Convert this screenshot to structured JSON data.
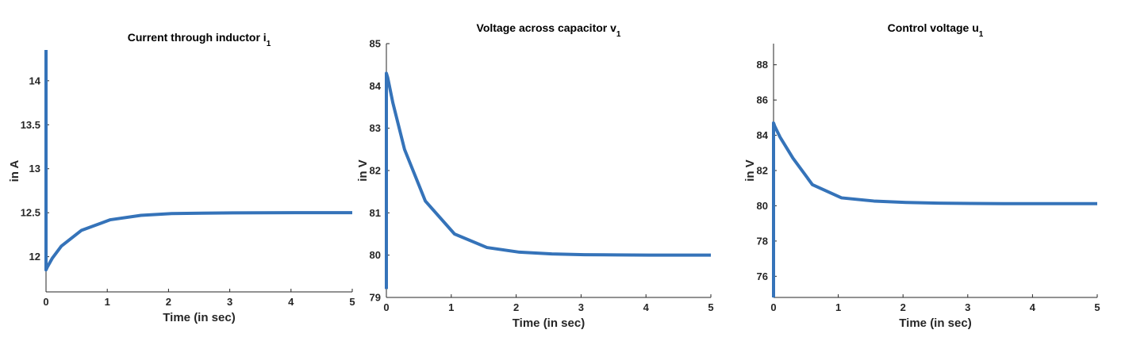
{
  "colors": {
    "line": "#3573B9",
    "axis": "#262626"
  },
  "chart_data": [
    {
      "type": "line",
      "title": {
        "main": "Current through inductor i",
        "sub": "1"
      },
      "xlabel": "Time (in sec)",
      "ylabel": "in A",
      "xlim": [
        0,
        5
      ],
      "ylim": [
        11.6,
        14.35
      ],
      "xticks": [
        0,
        1,
        2,
        3,
        4,
        5
      ],
      "yticks": [
        12,
        12.5,
        13,
        13.5,
        14
      ],
      "ytick_labels": [
        "12",
        "12.5",
        "13",
        "13.5",
        "14"
      ],
      "grid": false,
      "series": [
        {
          "x": [
            0,
            0,
            0.02,
            0.1,
            0.25,
            0.58,
            1.05,
            1.55,
            2.05,
            2.55,
            3.05,
            3.55,
            4.05,
            4.55,
            5.0
          ],
          "y": [
            14.35,
            11.85,
            11.88,
            11.98,
            12.12,
            12.3,
            12.42,
            12.47,
            12.49,
            12.495,
            12.498,
            12.499,
            12.5,
            12.5,
            12.5
          ]
        }
      ]
    },
    {
      "type": "line",
      "title": {
        "main": "Voltage across capacitor v",
        "sub": "1"
      },
      "xlabel": "Time (in sec)",
      "ylabel": "in V",
      "xlim": [
        0,
        5
      ],
      "ylim": [
        79,
        85
      ],
      "xticks": [
        0,
        1,
        2,
        3,
        4,
        5
      ],
      "yticks": [
        79,
        80,
        81,
        82,
        83,
        84,
        85
      ],
      "ytick_labels": [
        "79",
        "80",
        "81",
        "82",
        "83",
        "84",
        "85"
      ],
      "grid": false,
      "series": [
        {
          "x": [
            0,
            0,
            0.02,
            0.1,
            0.28,
            0.6,
            1.05,
            1.55,
            2.05,
            2.55,
            3.05,
            3.55,
            4.05,
            4.55,
            5.0
          ],
          "y": [
            79.2,
            84.3,
            84.2,
            83.6,
            82.5,
            81.28,
            80.5,
            80.18,
            80.07,
            80.03,
            80.01,
            80.005,
            80.0,
            80.0,
            80.0
          ]
        }
      ]
    },
    {
      "type": "line",
      "title": {
        "main": "Control voltage u",
        "sub": "1"
      },
      "xlabel": "Time (in sec)",
      "ylabel": "in V",
      "xlim": [
        0,
        5
      ],
      "ylim": [
        74.8,
        89.2
      ],
      "xticks": [
        0,
        1,
        2,
        3,
        4,
        5
      ],
      "yticks": [
        76,
        78,
        80,
        82,
        84,
        86,
        88
      ],
      "ytick_labels": [
        "76",
        "78",
        "80",
        "82",
        "84",
        "86",
        "88"
      ],
      "grid": false,
      "series": [
        {
          "x": [
            0,
            0,
            0.02,
            0.1,
            0.3,
            0.6,
            1.05,
            1.55,
            2.05,
            2.55,
            3.05,
            3.55,
            4.05,
            4.55,
            5.0
          ],
          "y": [
            74.8,
            84.7,
            84.5,
            83.9,
            82.7,
            81.2,
            80.45,
            80.27,
            80.19,
            80.15,
            80.13,
            80.12,
            80.12,
            80.12,
            80.12
          ]
        }
      ]
    }
  ]
}
